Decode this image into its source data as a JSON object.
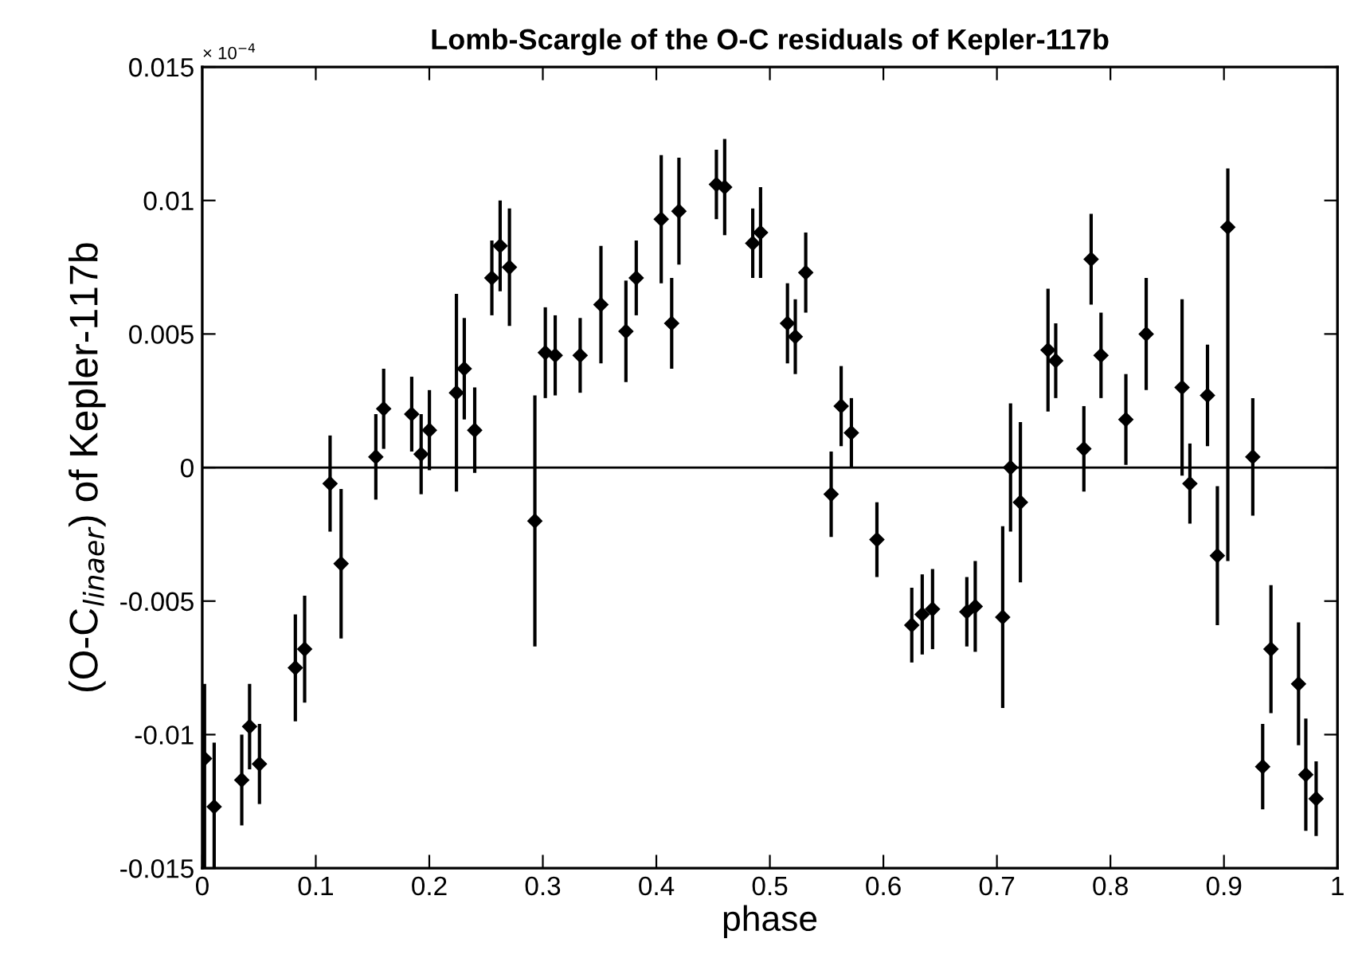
{
  "chart_data": {
    "type": "scatter",
    "title": "Lomb-Scargle of the O-C residuals of Kepler-117b",
    "xlabel": "phase",
    "ylabel": "(O-C$_{linaer}$) of Kepler-117b",
    "annotations": [
      "× 10$^{−4}$"
    ],
    "xlim": [
      0,
      1
    ],
    "xticks": [
      0,
      0.1,
      0.2,
      0.3,
      0.4,
      0.5,
      0.6,
      0.7,
      0.8,
      0.9,
      1
    ],
    "ylim": [
      -0.015,
      0.015
    ],
    "yticks": [
      -0.015,
      -0.01,
      -0.005,
      0,
      0.005,
      0.01,
      0.015
    ],
    "marker": "diamond",
    "grid": false,
    "ref_lines": [
      {
        "axis": "y",
        "value": 0,
        "color": "#000000"
      }
    ],
    "series": [
      {
        "color": "#000000",
        "x": [
          0.002,
          0.0105,
          0.0348,
          0.0417,
          0.0504,
          0.082,
          0.0902,
          0.1126,
          0.1223,
          0.1529,
          0.1598,
          0.1845,
          0.1928,
          0.2001,
          0.2239,
          0.2308,
          0.24,
          0.2551,
          0.2624,
          0.2706,
          0.293,
          0.3022,
          0.3109,
          0.3329,
          0.3512,
          0.3732,
          0.3823,
          0.4043,
          0.4135,
          0.4199,
          0.4529,
          0.4602,
          0.4849,
          0.4918,
          0.5155,
          0.5224,
          0.5316,
          0.5628,
          0.5718,
          0.554,
          0.5943,
          0.625,
          0.6342,
          0.6433,
          0.6735,
          0.6809,
          0.7051,
          0.712,
          0.7207,
          0.745,
          0.7518,
          0.7766,
          0.783,
          0.7917,
          0.8136,
          0.8315,
          0.8631,
          0.87,
          0.8855,
          0.8942,
          0.9034,
          0.9254,
          0.9341,
          0.9414,
          0.9657,
          0.9721,
          0.9812
        ],
        "values": [
          -0.0109,
          -0.0127,
          -0.0117,
          -0.0097,
          -0.0111,
          -0.0075,
          -0.0068,
          -0.0006,
          -0.0036,
          0.0004,
          0.0022,
          0.002,
          0.0005,
          0.0014,
          0.0028,
          0.0037,
          0.0014,
          0.0071,
          0.0083,
          0.0075,
          -0.002,
          0.0043,
          0.0042,
          0.0042,
          0.0061,
          0.0051,
          0.0071,
          0.0093,
          0.0054,
          0.0096,
          0.0106,
          0.0105,
          0.0084,
          0.0088,
          0.0054,
          0.0049,
          0.0073,
          0.0023,
          0.0013,
          -0.001,
          -0.0027,
          -0.0059,
          -0.0055,
          -0.0053,
          -0.0054,
          -0.0052,
          -0.0056,
          0.0,
          -0.0013,
          0.0044,
          0.004,
          0.0007,
          0.0078,
          0.0042,
          0.0018,
          0.005,
          0.003,
          -0.0006,
          0.0027,
          -0.0033,
          0.009,
          0.0004,
          -0.0112,
          -0.0068,
          -0.0081,
          -0.0115,
          -0.0124
        ],
        "errors": [
          [
            -0.015,
            -0.0081
          ],
          0.0024,
          0.0017,
          0.0016,
          0.0015,
          0.002,
          0.002,
          0.0018,
          0.0028,
          0.0016,
          0.0015,
          0.0014,
          0.0015,
          0.0015,
          0.0037,
          0.0019,
          0.0016,
          0.0014,
          0.0017,
          0.0022,
          0.0047,
          0.0017,
          0.0015,
          0.0014,
          0.0022,
          0.0019,
          0.0014,
          0.0024,
          0.0017,
          0.002,
          0.0013,
          0.0018,
          0.0013,
          0.0017,
          0.0015,
          0.0014,
          0.0015,
          0.0015,
          0.0013,
          0.0016,
          0.0014,
          0.0014,
          0.0015,
          0.0015,
          0.0013,
          0.0017,
          0.0034,
          0.0024,
          0.003,
          0.0023,
          0.0014,
          0.0016,
          0.0017,
          0.0016,
          0.0017,
          0.0021,
          0.0033,
          0.0015,
          0.0019,
          0.0026,
          [
            -0.0035,
            0.0112
          ],
          0.0022,
          0.0016,
          0.0024,
          0.0023,
          0.0021,
          0.0014
        ]
      }
    ]
  }
}
